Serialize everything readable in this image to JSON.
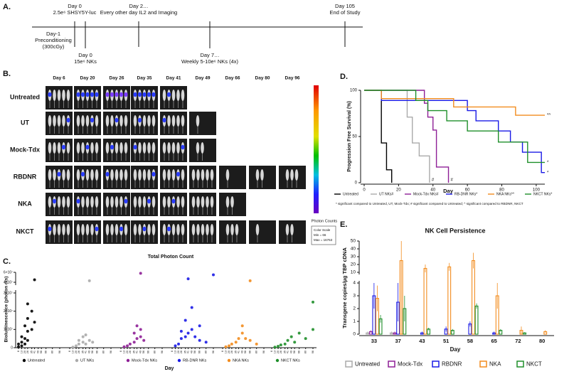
{
  "panel_labels": [
    "A.",
    "B.",
    "C.",
    "D.",
    "E."
  ],
  "timeline": {
    "above": [
      [
        "Day 0",
        "2.5e⁶ SHSY5Y-luc"
      ],
      [
        "Day 2…",
        "Every other day IL2 and Imaging"
      ],
      [
        "Day 105",
        "End of Study"
      ]
    ],
    "below": [
      [
        "Day-1",
        "Preconditioning",
        "(300cGy)"
      ],
      [
        "Day 0",
        "15e⁶ NKs"
      ],
      [
        "Day 7…",
        "Weekly 5-10e⁶ NKs (4x)"
      ]
    ]
  },
  "imaging": {
    "days": [
      "Day 6",
      "Day 20",
      "Day 26",
      "Day 35",
      "Day 41",
      "Day 49",
      "Day 66",
      "Day 80",
      "Day 96"
    ],
    "groups": [
      "Untreated",
      "UT",
      "Mock-Tdx",
      "RBDNR",
      "NKA",
      "NKCT"
    ],
    "scale_title": "Photon Counts",
    "scale_box": [
      "Color Scale",
      "Min = 66",
      "Max = 16763"
    ]
  },
  "chart_data": [
    {
      "type": "scatter",
      "title": "Total Photon Count",
      "x_label": "Day",
      "y_label": "Bioluminescence (photon cts)",
      "xticks": [
        6,
        13,
        20,
        26,
        35,
        41,
        49,
        56,
        66,
        80,
        96
      ],
      "ylim": [
        0,
        60000000
      ],
      "ybreak": [
        30000000,
        40000000
      ],
      "yticks": [
        0,
        {
          "value": 10000000,
          "label": "1×10⁷"
        },
        {
          "value": 20000000,
          "label": "2×10⁷"
        },
        {
          "value": 30000000,
          "label": "3×10⁷"
        },
        {
          "value": 40000000,
          "label": "4×10⁷"
        },
        {
          "value": 60000000,
          "label": "6×10⁷"
        }
      ],
      "series": [
        {
          "name": "Untreated",
          "color": "#000000",
          "x": [
            6,
            6,
            13,
            13,
            13,
            20,
            20,
            20,
            26,
            26,
            26,
            26,
            35,
            35,
            41,
            41
          ],
          "values": [
            500000,
            2000000,
            1000000,
            3000000,
            6000000,
            2000000,
            5000000,
            12000000,
            4000000,
            9000000,
            16000000,
            24000000,
            10000000,
            20000000,
            14000000,
            45000000
          ]
        },
        {
          "name": "UT NKs",
          "color": "#aaaaaa",
          "x": [
            13,
            20,
            26,
            26,
            35,
            35,
            41,
            41,
            49,
            49,
            56
          ],
          "values": [
            300000,
            1000000,
            2000000,
            4000000,
            3000000,
            6000000,
            2000000,
            7000000,
            4000000,
            43000000,
            3000000
          ]
        },
        {
          "name": "Mock-Tdx NKs",
          "color": "#8e1f96",
          "x": [
            13,
            20,
            26,
            35,
            35,
            41,
            41,
            49,
            49,
            49,
            56
          ],
          "values": [
            500000,
            1000000,
            2000000,
            3000000,
            8000000,
            5000000,
            12000000,
            6000000,
            10000000,
            58000000,
            4000000
          ]
        },
        {
          "name": "RB-DNR NKs",
          "color": "#1a1ae6",
          "x": [
            13,
            20,
            26,
            26,
            35,
            35,
            41,
            41,
            49,
            49,
            56,
            66,
            66,
            80,
            96
          ],
          "values": [
            1000000,
            2000000,
            5000000,
            9000000,
            6000000,
            15000000,
            8000000,
            47000000,
            10000000,
            22000000,
            6000000,
            4000000,
            12000000,
            3000000,
            55000000
          ]
        },
        {
          "name": "NKA NKs",
          "color": "#f28c1e",
          "x": [
            13,
            20,
            26,
            35,
            41,
            49,
            49,
            56,
            66,
            66,
            80
          ],
          "values": [
            500000,
            1000000,
            2000000,
            3000000,
            5000000,
            8000000,
            12000000,
            5000000,
            4000000,
            43000000,
            2000000
          ]
        },
        {
          "name": "NKCT NKs",
          "color": "#1f8f2a",
          "x": [
            13,
            20,
            26,
            35,
            41,
            49,
            56,
            66,
            80,
            96,
            96
          ],
          "values": [
            300000,
            800000,
            1500000,
            2000000,
            4000000,
            6000000,
            3000000,
            8000000,
            5000000,
            10000000,
            25000000
          ]
        }
      ]
    },
    {
      "type": "step",
      "x_label": "Day",
      "y_label": "Progression Free Survival (%)",
      "xlim": [
        0,
        105
      ],
      "xticks": [
        0,
        20,
        40,
        60,
        80,
        100
      ],
      "ylim": [
        0,
        100
      ],
      "yticks": [
        0,
        50,
        100
      ],
      "series": [
        {
          "name": "Untreated",
          "color": "#000000",
          "x": [
            0,
            10,
            13,
            16
          ],
          "values": [
            100,
            43,
            14,
            0
          ]
        },
        {
          "name": "UT NKs#",
          "color": "#aaaaaa",
          "x": [
            0,
            25,
            28,
            32,
            38
          ],
          "values": [
            100,
            71,
            43,
            29,
            0
          ],
          "end_label": "#"
        },
        {
          "name": "Mock-Tdx NKs#",
          "color": "#8e1f96",
          "x": [
            0,
            35,
            37,
            40,
            42,
            49
          ],
          "values": [
            100,
            86,
            71,
            57,
            17,
            0
          ],
          "end_label": "#"
        },
        {
          "name": "RB-DNR NKs*",
          "color": "#1a1ae6",
          "x": [
            0,
            10,
            60,
            65,
            78,
            85,
            92,
            103
          ],
          "values": [
            100,
            89,
            78,
            67,
            56,
            44,
            33,
            11
          ],
          "end_label": "*"
        },
        {
          "name": "NKA NKs*^",
          "color": "#f28c1e",
          "x": [
            0,
            10,
            52,
            88
          ],
          "values": [
            100,
            91,
            82,
            73
          ],
          "end_label": "*^"
        },
        {
          "name": "NKCT NKs*",
          "color": "#1f8f2a",
          "x": [
            0,
            30,
            37,
            48,
            60,
            78,
            95
          ],
          "values": [
            100,
            89,
            78,
            67,
            56,
            44,
            22
          ],
          "end_label": "*"
        }
      ],
      "footnote": "* significant compared to Untreated, UT, Mock-Tdx; # significant compared to Untreated; ^ significant compared to RBDNR, NKCT"
    },
    {
      "type": "bar",
      "title": "NK Cell Persistence",
      "x_label": "Day",
      "y_label": "Transgene copies/µg TBP cDNA",
      "categories": [
        "33",
        "37",
        "43",
        "51",
        "58",
        "65",
        "72",
        "80"
      ],
      "ylim": [
        0,
        50
      ],
      "ybreak": [
        4,
        10
      ],
      "yticks": [
        0,
        1,
        2,
        3,
        4,
        10,
        20,
        30,
        40,
        50
      ],
      "series": [
        {
          "name": "Untreated",
          "color": "#aaaaaa",
          "values": [
            0.1,
            0.1,
            0,
            0,
            0,
            0,
            0,
            0
          ],
          "errors": [
            0.1,
            0.1,
            0,
            0,
            0,
            0,
            0,
            0
          ]
        },
        {
          "name": "Mock-Tdx",
          "color": "#8e1f96",
          "values": [
            0.2,
            0.1,
            0,
            0,
            0,
            0,
            0,
            0
          ],
          "errors": [
            0.1,
            0.1,
            0,
            0,
            0,
            0,
            0,
            0
          ]
        },
        {
          "name": "RBDNR",
          "color": "#1a1ae6",
          "values": [
            3,
            2.5,
            0.1,
            0.4,
            0.8,
            0.1,
            0,
            0
          ],
          "errors": [
            1,
            1.5,
            0.1,
            0.2,
            0.2,
            0.1,
            0,
            0
          ]
        },
        {
          "name": "NKA",
          "color": "#f28c1e",
          "values": [
            2.8,
            25,
            15,
            17,
            25,
            3,
            0.3,
            0.2
          ],
          "errors": [
            1,
            25,
            5,
            5,
            10,
            1,
            0.3,
            0.1
          ]
        },
        {
          "name": "NKCT",
          "color": "#1f8f2a",
          "values": [
            1.2,
            2,
            0.4,
            0.3,
            2.2,
            0.3,
            0.1,
            0
          ],
          "errors": [
            0.3,
            1,
            0.1,
            0.1,
            0.2,
            0.1,
            0.05,
            0
          ]
        }
      ]
    }
  ]
}
